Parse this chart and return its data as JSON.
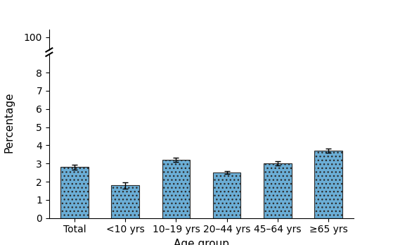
{
  "categories": [
    "Total",
    "<10 yrs",
    "10–19 yrs",
    "20–44 yrs",
    "45–64 yrs",
    "≥65 yrs"
  ],
  "values": [
    2.8,
    1.8,
    3.2,
    2.5,
    3.0,
    3.7
  ],
  "errors": [
    0.12,
    0.18,
    0.12,
    0.08,
    0.12,
    0.12
  ],
  "bar_color": "#6baed6",
  "bar_edgecolor": "#2c2c2c",
  "xlabel": "Age group",
  "ylabel": "Percentage",
  "ylim_lower": [
    0,
    9
  ],
  "ylim_upper": [
    95,
    102
  ],
  "yticks_lower": [
    0,
    1,
    2,
    3,
    4,
    5,
    6,
    7,
    8
  ],
  "ytick_top": 100,
  "xlabel_fontsize": 11,
  "ylabel_fontsize": 11,
  "tick_fontsize": 10,
  "bar_width": 0.55
}
